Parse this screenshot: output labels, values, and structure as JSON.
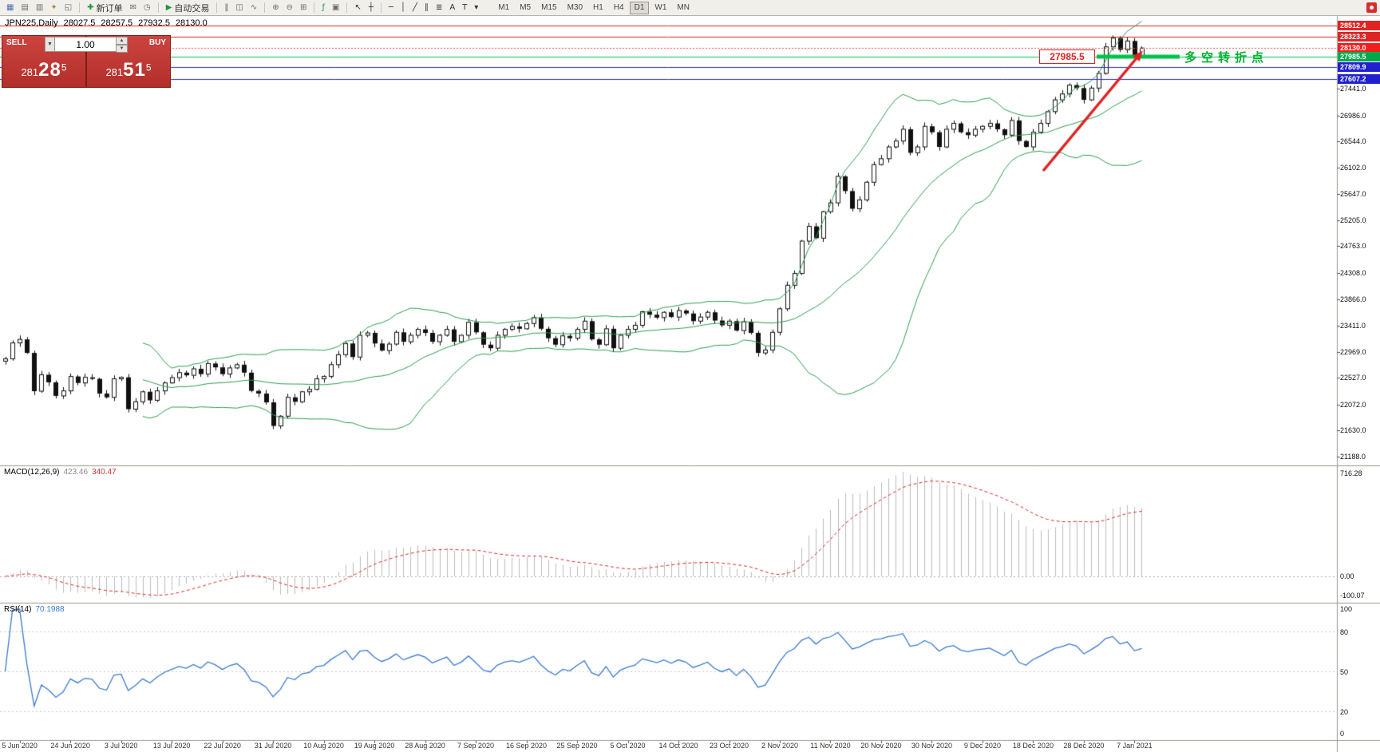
{
  "toolbar": {
    "items": [
      {
        "type": "icon",
        "name": "new-chart-icon",
        "glyph": "▦",
        "color": "#4a6fa5"
      },
      {
        "type": "icon",
        "name": "profiles-icon",
        "glyph": "▤",
        "color": "#6f6b64"
      },
      {
        "type": "icon",
        "name": "market-watch-icon",
        "glyph": "▥",
        "color": "#6f6b64"
      },
      {
        "type": "icon",
        "name": "navigator-icon",
        "glyph": "✦",
        "color": "#b08a2e"
      },
      {
        "type": "icon",
        "name": "terminal-icon",
        "glyph": "◱",
        "color": "#6f6b64"
      },
      {
        "type": "sep"
      },
      {
        "type": "button",
        "name": "new-order-button",
        "glyph": "✚",
        "glyph_color": "#1d9a3a",
        "label": "新订单"
      },
      {
        "type": "icon",
        "name": "mail-icon",
        "glyph": "✉",
        "color": "#6f6b64"
      },
      {
        "type": "icon",
        "name": "history-icon",
        "glyph": "◷",
        "color": "#6f6b64"
      },
      {
        "type": "sep"
      },
      {
        "type": "button",
        "name": "autotrading-button",
        "glyph": "▶",
        "glyph_color": "#1d9a3a",
        "label": "自动交易"
      },
      {
        "type": "sep"
      },
      {
        "type": "icon",
        "name": "bar-chart-icon",
        "glyph": "‖",
        "color": "#6f6b64"
      },
      {
        "type": "icon",
        "name": "candle-chart-icon",
        "glyph": "◫",
        "color": "#6f6b64"
      },
      {
        "type": "icon",
        "name": "line-chart-icon",
        "glyph": "∿",
        "color": "#6f6b64"
      },
      {
        "type": "sep"
      },
      {
        "type": "icon",
        "name": "zoom-in-icon",
        "glyph": "⊕",
        "color": "#6f6b64"
      },
      {
        "type": "icon",
        "name": "zoom-out-icon",
        "glyph": "⊖",
        "color": "#6f6b64"
      },
      {
        "type": "icon",
        "name": "tile-windows-icon",
        "glyph": "⊞",
        "color": "#6f6b64"
      },
      {
        "type": "sep"
      },
      {
        "type": "icon",
        "name": "indicators-icon",
        "glyph": "ƒ",
        "color": "#1d9a3a"
      },
      {
        "type": "icon",
        "name": "templates-icon",
        "glyph": "▣",
        "color": "#6f6b64"
      },
      {
        "type": "sep"
      },
      {
        "type": "icon",
        "name": "cursor-icon",
        "glyph": "↖",
        "color": "#333333"
      },
      {
        "type": "icon",
        "name": "crosshair-icon",
        "glyph": "┼",
        "color": "#333333"
      },
      {
        "type": "sep"
      },
      {
        "type": "icon",
        "name": "hline-icon",
        "glyph": "─",
        "color": "#333333"
      },
      {
        "type": "icon",
        "name": "vline-icon",
        "glyph": "│",
        "color": "#333333"
      },
      {
        "type": "icon",
        "name": "trendline-icon",
        "glyph": "╱",
        "color": "#333333"
      },
      {
        "type": "icon",
        "name": "channel-icon",
        "glyph": "∥",
        "color": "#333333"
      },
      {
        "type": "icon",
        "name": "fibonacci-icon",
        "glyph": "≣",
        "color": "#333333"
      },
      {
        "type": "icon",
        "name": "text-icon",
        "glyph": "A",
        "color": "#333333"
      },
      {
        "type": "icon",
        "name": "label-icon",
        "glyph": "T",
        "color": "#333333"
      },
      {
        "type": "icon",
        "name": "arrow-tools-icon",
        "glyph": "▾",
        "color": "#333333"
      }
    ],
    "timeframes": [
      "M1",
      "M5",
      "M15",
      "M30",
      "H1",
      "H4",
      "D1",
      "W1",
      "MN"
    ],
    "active_timeframe": "D1"
  },
  "chart": {
    "header": {
      "symbol": "JPN225,Daily",
      "open": "28027.5",
      "high": "28257.5",
      "low": "27932.5",
      "close": "28130.0"
    },
    "trade_panel": {
      "sell_label": "SELL",
      "buy_label": "BUY",
      "volume": "1.00",
      "sell_price": "28128.5",
      "buy_price": "28151.5",
      "button_color": "#b8332e"
    },
    "annotations": {
      "price_box": "27985.5",
      "pivot_text": "多空转折点",
      "arrow_color": "#e02222"
    },
    "price_tags": [
      {
        "text": "28512.4",
        "price": 28512.4,
        "bg": "#e02323"
      },
      {
        "text": "28323.3",
        "price": 28323.3,
        "bg": "#e02323"
      },
      {
        "text": "28130.0",
        "price": 28130.0,
        "bg": "#f21d1d"
      },
      {
        "text": "27985.5",
        "price": 27985.5,
        "bg": "#00a84a"
      },
      {
        "text": "27809.9",
        "price": 27809.9,
        "bg": "#2020cf"
      },
      {
        "text": "27607.2",
        "price": 27607.2,
        "bg": "#2020cf"
      }
    ]
  },
  "chart_data": {
    "type": "candlestick",
    "symbol": "JPN225",
    "timeframe": "Daily",
    "current_bar": {
      "open": 28027.5,
      "high": 28257.5,
      "low": 27932.5,
      "close": 28130.0
    },
    "closes": [
      22850,
      23120,
      23180,
      22950,
      22300,
      22580,
      22450,
      22220,
      22305,
      22550,
      22440,
      22535,
      22510,
      22260,
      22195,
      22510,
      22535,
      21995,
      22120,
      22290,
      22145,
      22305,
      22440,
      22530,
      22615,
      22570,
      22680,
      22590,
      22770,
      22705,
      22590,
      22695,
      22750,
      22615,
      22305,
      22260,
      22110,
      21710,
      21875,
      22195,
      22120,
      22290,
      22330,
      22510,
      22550,
      22750,
      22920,
      23110,
      22880,
      23250,
      23290,
      23110,
      22990,
      23100,
      23300,
      23140,
      23250,
      23350,
      23290,
      23140,
      23250,
      23350,
      23140,
      23250,
      23470,
      23300,
      23090,
      23030,
      23250,
      23350,
      23400,
      23360,
      23450,
      23550,
      23360,
      23200,
      23090,
      23240,
      23200,
      23350,
      23490,
      23180,
      23090,
      23360,
      23030,
      23250,
      23350,
      23420,
      23650,
      23600,
      23550,
      23640,
      23560,
      23670,
      23620,
      23490,
      23560,
      23640,
      23500,
      23420,
      23490,
      23330,
      23480,
      23290,
      22950,
      23000,
      23300,
      23700,
      24100,
      24300,
      24850,
      25100,
      24900,
      25350,
      25500,
      25950,
      25700,
      25400,
      25550,
      25850,
      26150,
      26250,
      26450,
      26550,
      26750,
      26350,
      26450,
      26800,
      26700,
      26450,
      26750,
      26850,
      26700,
      26650,
      26750,
      26800,
      26850,
      26750,
      26650,
      26900,
      26550,
      26450,
      26700,
      26850,
      27050,
      27250,
      27350,
      27500,
      27450,
      27250,
      27450,
      27700,
      28150,
      28300,
      28100,
      28250,
      28000,
      28130
    ],
    "overlays": {
      "bollinger_bands": {
        "period": 20,
        "deviation": 2,
        "color": "#2e9e4f"
      }
    },
    "horizontal_lines": [
      {
        "price": 28512.4,
        "color": "#dd2222",
        "width": 1,
        "dash": []
      },
      {
        "price": 28323.3,
        "color": "#dd2222",
        "width": 1,
        "dash": []
      },
      {
        "price": 28130.0,
        "color": "#ff5050",
        "width": 1,
        "dash": [
          2,
          2
        ]
      },
      {
        "price": 27985.5,
        "color": "#00c24b",
        "width": 1,
        "dash": []
      },
      {
        "price": 27809.9,
        "color": "#2222dd",
        "width": 1,
        "dash": []
      },
      {
        "price": 27607.2,
        "color": "#2222dd",
        "width": 1,
        "dash": []
      }
    ],
    "pivot_segment": {
      "price": 27985.5,
      "color": "#00c24b",
      "width": 5
    },
    "indicators": [
      {
        "name": "MACD",
        "label": "MACD(12,26,9)",
        "value_main": "423.46",
        "value_signal": "340.47",
        "scale_labels": [
          "716.28",
          "0.00",
          "-100.07"
        ],
        "histogram_color": "#bdbdbd",
        "signal_color": "#dd2c2c"
      },
      {
        "name": "RSI",
        "label": "RSI(14)",
        "value": "70.1988",
        "scale_labels": [
          100,
          80,
          50,
          20,
          0
        ],
        "level_lines": [
          80,
          50,
          20
        ],
        "line_color": "#3a7ad1"
      }
    ],
    "x_axis_dates": [
      "5 Jun 2020",
      "24 Jun 2020",
      "3 Jul 2020",
      "13 Jul 2020",
      "22 Jul 2020",
      "31 Jul 2020",
      "10 Aug 2020",
      "19 Aug 2020",
      "28 Aug 2020",
      "7 Sep 2020",
      "16 Sep 2020",
      "25 Sep 2020",
      "5 Oct 2020",
      "14 Oct 2020",
      "23 Oct 2020",
      "2 Nov 2020",
      "11 Nov 2020",
      "20 Nov 2020",
      "30 Nov 2020",
      "9 Dec 2020",
      "18 Dec 2020",
      "28 Dec 2020",
      "7 Jan 2021"
    ],
    "y_axis": {
      "top": 28512.4,
      "bottom": 21188.0,
      "ticks": [
        "27441.0",
        "26986.0",
        "26544.0",
        "26102.0",
        "25647.0",
        "25205.0",
        "24763.0",
        "24308.0",
        "23866.0",
        "23411.0",
        "22969.0",
        "22527.0",
        "22072.0",
        "21630.0",
        "21188.0"
      ]
    }
  }
}
